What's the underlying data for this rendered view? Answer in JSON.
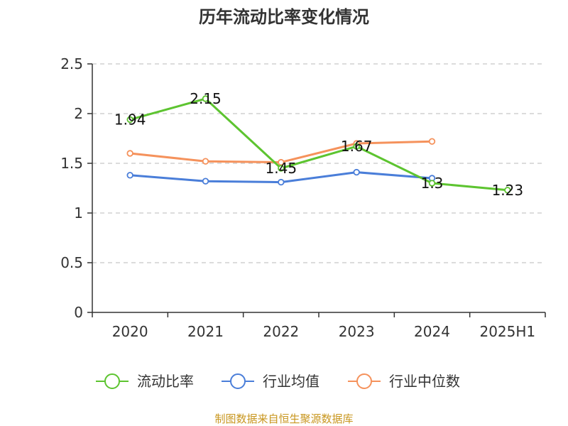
{
  "chart_data": {
    "type": "line",
    "title": "历年流动比率变化情况",
    "categories": [
      "2020",
      "2021",
      "2022",
      "2023",
      "2024",
      "2025H1"
    ],
    "ylim": [
      0,
      2.5
    ],
    "yticks": [
      "0",
      "0.5",
      "1",
      "1.5",
      "2",
      "2.5"
    ],
    "grid": true,
    "legend_position": "bottom",
    "series": [
      {
        "name": "流动比率",
        "color": "#5dc430",
        "values": [
          1.94,
          2.15,
          1.45,
          1.67,
          1.3,
          1.23
        ],
        "labels": [
          "1.94",
          "2.15",
          "1.45",
          "1.67",
          "1.3",
          "1.23"
        ],
        "width": 3
      },
      {
        "name": "行业均值",
        "color": "#4a7ed9",
        "values": [
          1.38,
          1.32,
          1.31,
          1.41,
          1.35,
          null
        ],
        "width": 3
      },
      {
        "name": "行业中位数",
        "color": "#f5925c",
        "values": [
          1.6,
          1.52,
          1.51,
          1.7,
          1.72,
          null
        ],
        "width": 3
      }
    ]
  },
  "footer": {
    "source": "制图数据来自恒生聚源数据库"
  }
}
